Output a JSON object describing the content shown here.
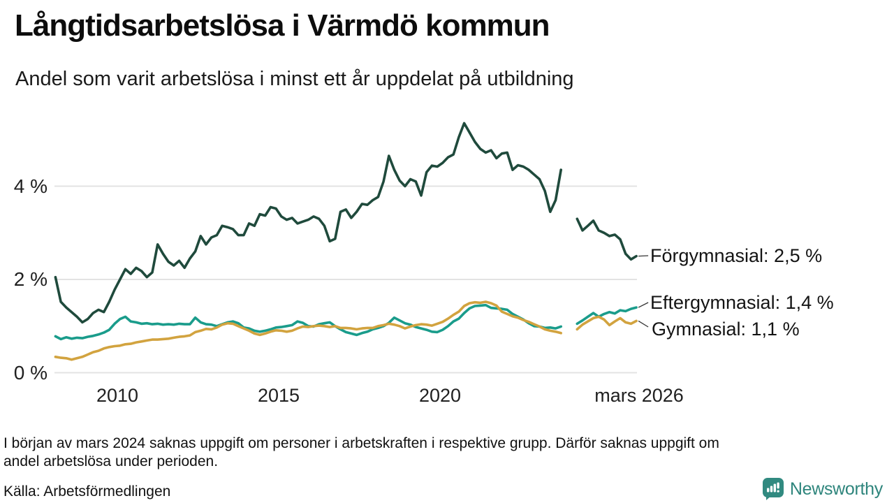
{
  "title": "Långtidsarbetslösa i Värmdö kommun",
  "subtitle": "Andel som varit arbetslösa i minst ett år uppdelat på utbildning",
  "footnote": {
    "line1": "I början av mars 2024 saknas uppgift om personer i arbetskraften i respektive grupp. Därför saknas uppgift om",
    "line2": "andel arbetslösa under perioden."
  },
  "source": "Källa: Arbetsförmedlingen",
  "logo": {
    "text": "Newsworthy",
    "color": "#318a80"
  },
  "colors": {
    "grid": "#e3e3e3",
    "text": "#111111"
  },
  "chart_data": {
    "type": "line",
    "title": "Långtidsarbetslösa i Värmdö kommun",
    "subtitle": "Andel som varit arbetslösa i minst ett år uppdelat på utbildning",
    "unit": "%",
    "grid": true,
    "legend_position": "right-end-labels",
    "xlim": [
      2008.0,
      2026.2
    ],
    "ylim": [
      0,
      5.6
    ],
    "x_start": 2008.083,
    "x_step": 0.16667,
    "gap_period": "mars 2024",
    "y_axis_ticks": [
      {
        "label": "0 %",
        "value": 0
      },
      {
        "label": "2 %",
        "value": 2
      },
      {
        "label": "4 %",
        "value": 4
      }
    ],
    "x_axis_ticks": [
      {
        "label": "2010",
        "t": 2010
      },
      {
        "label": "2015",
        "t": 2015
      },
      {
        "label": "2020",
        "t": 2020
      },
      {
        "label": "mars 2026",
        "t": 2026.17
      }
    ],
    "series": [
      {
        "name": "Förgymnasial",
        "end_label": "Förgymnasial: 2,5 %",
        "latest_value": "2,5 %",
        "color": "#1f4a3c",
        "values": [
          2.05,
          1.52,
          1.4,
          1.3,
          1.2,
          1.08,
          1.15,
          1.28,
          1.35,
          1.3,
          1.52,
          1.78,
          2.0,
          2.22,
          2.12,
          2.25,
          2.18,
          2.05,
          2.15,
          2.75,
          2.55,
          2.38,
          2.3,
          2.4,
          2.25,
          2.45,
          2.6,
          2.93,
          2.75,
          2.9,
          2.95,
          3.15,
          3.12,
          3.08,
          2.95,
          2.95,
          3.2,
          3.15,
          3.4,
          3.37,
          3.55,
          3.52,
          3.35,
          3.28,
          3.32,
          3.2,
          3.24,
          3.28,
          3.35,
          3.3,
          3.15,
          2.82,
          2.87,
          3.45,
          3.5,
          3.32,
          3.45,
          3.62,
          3.6,
          3.7,
          3.77,
          4.1,
          4.65,
          4.35,
          4.12,
          4.0,
          4.15,
          4.1,
          3.8,
          4.3,
          4.44,
          4.42,
          4.5,
          4.62,
          4.68,
          5.05,
          5.35,
          5.15,
          4.95,
          4.8,
          4.72,
          4.77,
          4.6,
          4.7,
          4.72,
          4.35,
          4.45,
          4.42,
          4.35,
          4.25,
          4.15,
          3.9,
          3.45,
          3.7,
          4.35,
          null,
          null,
          3.3,
          3.05,
          3.15,
          3.26,
          3.05,
          3.0,
          2.93,
          2.96,
          2.86,
          2.55,
          2.43,
          2.5
        ]
      },
      {
        "name": "Eftergymnasial",
        "end_label": "Eftergymnasial: 1,4 %",
        "latest_value": "1,4 %",
        "color": "#1a9c8b",
        "values": [
          0.78,
          0.72,
          0.76,
          0.73,
          0.75,
          0.74,
          0.77,
          0.79,
          0.82,
          0.86,
          0.92,
          1.05,
          1.15,
          1.2,
          1.1,
          1.08,
          1.05,
          1.06,
          1.04,
          1.05,
          1.03,
          1.04,
          1.03,
          1.05,
          1.04,
          1.04,
          1.18,
          1.08,
          1.04,
          1.03,
          1.0,
          1.04,
          1.08,
          1.1,
          1.06,
          0.97,
          0.95,
          0.9,
          0.88,
          0.9,
          0.93,
          0.97,
          0.98,
          1.0,
          1.02,
          1.1,
          1.07,
          1.0,
          0.99,
          1.04,
          1.06,
          1.08,
          1.0,
          0.93,
          0.87,
          0.84,
          0.81,
          0.85,
          0.88,
          0.93,
          0.96,
          1.0,
          1.07,
          1.18,
          1.12,
          1.06,
          1.03,
          0.98,
          0.95,
          0.92,
          0.88,
          0.87,
          0.92,
          1.0,
          1.1,
          1.16,
          1.28,
          1.38,
          1.43,
          1.44,
          1.45,
          1.39,
          1.38,
          1.37,
          1.35,
          1.26,
          1.2,
          1.14,
          1.06,
          1.0,
          0.99,
          0.96,
          0.97,
          0.95,
          0.99,
          null,
          null,
          1.05,
          1.12,
          1.2,
          1.28,
          1.2,
          1.26,
          1.3,
          1.27,
          1.34,
          1.32,
          1.37,
          1.4
        ]
      },
      {
        "name": "Gymnasial",
        "end_label": "Gymnasial: 1,1 %",
        "latest_value": "1,1 %",
        "color": "#d2a33f",
        "values": [
          0.34,
          0.32,
          0.31,
          0.28,
          0.31,
          0.34,
          0.39,
          0.44,
          0.47,
          0.52,
          0.55,
          0.57,
          0.58,
          0.61,
          0.62,
          0.65,
          0.67,
          0.69,
          0.71,
          0.71,
          0.72,
          0.73,
          0.75,
          0.77,
          0.78,
          0.8,
          0.87,
          0.9,
          0.94,
          0.93,
          0.97,
          1.03,
          1.06,
          1.05,
          1.0,
          0.95,
          0.9,
          0.84,
          0.81,
          0.84,
          0.88,
          0.91,
          0.9,
          0.88,
          0.9,
          0.95,
          0.99,
          0.98,
          1.0,
          1.01,
          1.0,
          0.98,
          1.0,
          0.96,
          0.96,
          0.95,
          0.93,
          0.95,
          0.96,
          0.96,
          1.0,
          1.02,
          1.05,
          1.03,
          1.0,
          0.95,
          0.99,
          1.02,
          1.04,
          1.03,
          1.01,
          1.05,
          1.09,
          1.16,
          1.24,
          1.31,
          1.43,
          1.49,
          1.51,
          1.5,
          1.52,
          1.49,
          1.44,
          1.31,
          1.26,
          1.21,
          1.18,
          1.13,
          1.09,
          1.04,
          0.99,
          0.93,
          0.9,
          0.88,
          0.85,
          null,
          null,
          0.93,
          1.03,
          1.1,
          1.17,
          1.2,
          1.14,
          1.02,
          1.1,
          1.17,
          1.08,
          1.05,
          1.11
        ]
      }
    ]
  }
}
